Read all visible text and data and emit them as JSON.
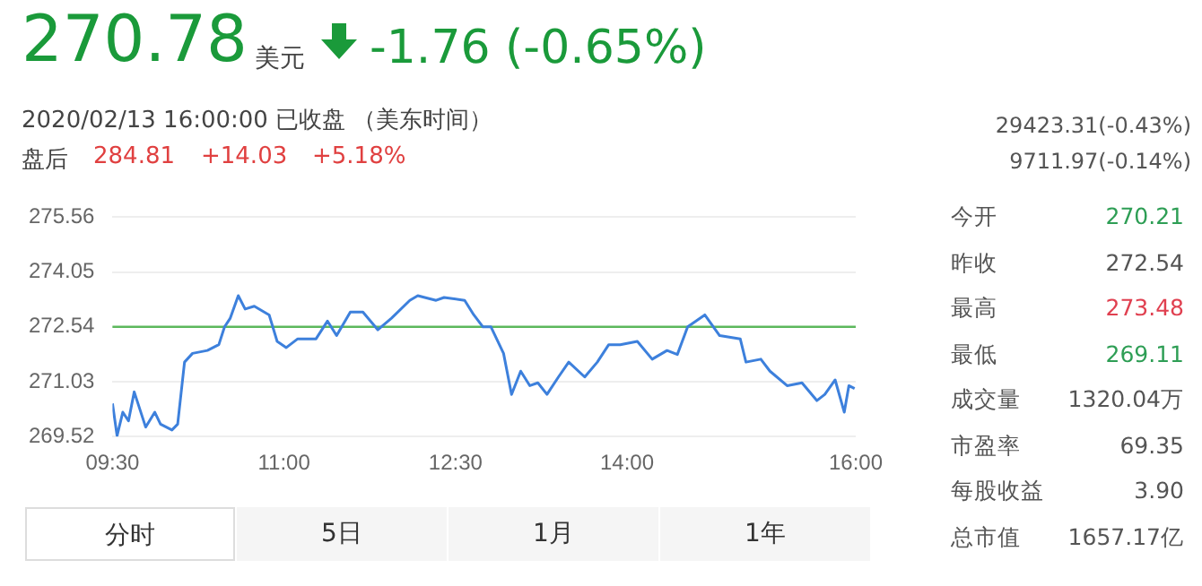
{
  "chart_data": {
    "type": "line",
    "title": "270.78",
    "subtitle": "2020/02/13 16:00:00   已收盘   （美东时间）",
    "x": [
      9.5,
      9.54,
      9.59,
      9.64,
      9.69,
      9.79,
      9.87,
      9.92,
      10.02,
      10.07,
      10.13,
      10.2,
      10.33,
      10.43,
      10.48,
      10.53,
      10.6,
      10.66,
      10.74,
      10.87,
      10.94,
      11.02,
      11.12,
      11.28,
      11.38,
      11.46,
      11.58,
      11.69,
      11.82,
      11.94,
      12.1,
      12.17,
      12.33,
      12.4,
      12.58,
      12.66,
      12.74,
      12.81,
      12.92,
      12.99,
      13.07,
      13.15,
      13.22,
      13.3,
      13.4,
      13.49,
      13.63,
      13.74,
      13.84,
      13.94,
      14.09,
      14.22,
      14.35,
      14.44,
      14.53,
      14.68,
      14.81,
      14.99,
      15.04,
      15.17,
      15.25,
      15.4,
      15.53,
      15.66,
      15.73,
      15.82,
      15.9,
      15.94,
      15.99
    ],
    "series": [
      {
        "color": "#3d80dc",
        "values": [
          270.43,
          269.54,
          270.19,
          269.95,
          270.75,
          269.78,
          270.19,
          269.86,
          269.7,
          269.86,
          271.57,
          271.81,
          271.89,
          272.05,
          272.54,
          272.78,
          273.4,
          273.03,
          273.11,
          272.87,
          272.14,
          271.97,
          272.21,
          272.21,
          272.7,
          272.3,
          272.95,
          272.95,
          272.46,
          272.78,
          273.27,
          273.4,
          273.27,
          273.35,
          273.27,
          272.87,
          272.54,
          272.54,
          271.81,
          270.68,
          271.32,
          270.92,
          271,
          270.68,
          271.16,
          271.57,
          271.16,
          271.57,
          272.05,
          272.05,
          272.14,
          271.65,
          271.89,
          271.78,
          272.54,
          272.87,
          272.3,
          272.21,
          271.57,
          271.65,
          271.32,
          270.92,
          271,
          270.51,
          270.68,
          271.08,
          270.19,
          270.92,
          270.84
        ]
      }
    ],
    "xlim": [
      9.5,
      16
    ],
    "xticks": [
      {
        "value": 9.5,
        "label": "09:30"
      },
      {
        "value": 11,
        "label": "11:00"
      },
      {
        "value": 12.5,
        "label": "12:30"
      },
      {
        "value": 14,
        "label": "14:00"
      },
      {
        "value": 16,
        "label": "16:00"
      }
    ],
    "ylim": [
      269.52,
      275.56
    ],
    "yticks": [
      269.52,
      271.03,
      272.54,
      274.05,
      275.56
    ],
    "ref_lines": [
      {
        "axis": "y",
        "value": 272.54,
        "color": "#5cb85c"
      }
    ],
    "grid": "y",
    "legend": false,
    "marker": "none",
    "line_style": "solid",
    "annotations": [
      "美元",
      "-1.76 (-0.65%)",
      "盘后",
      "284.81",
      "+14.03",
      "+5.18%",
      "29423.31(-0.43%)",
      "9711.97(-0.14%)",
      "今开",
      "270.21",
      "昨收",
      "272.54",
      "最高",
      "273.48",
      "最低",
      "269.11",
      "成交量",
      "1320.04万",
      "市盈率",
      "69.35",
      "每股收益",
      "3.90",
      "总市值",
      "1657.17亿",
      "分时",
      "5日",
      "1月",
      "1年"
    ]
  }
}
